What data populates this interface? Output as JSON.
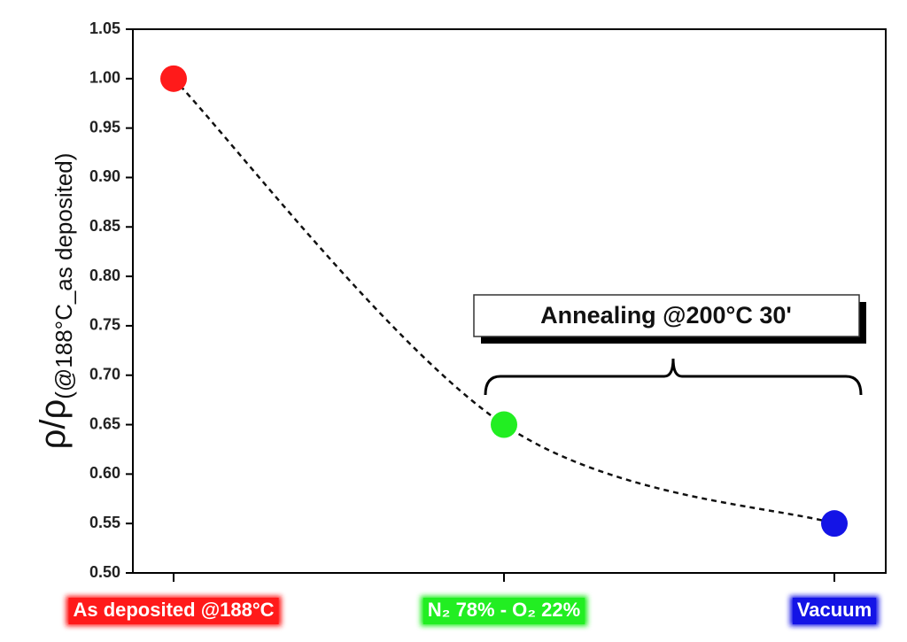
{
  "chart_data": {
    "type": "line",
    "y_label": "ρ/ρ",
    "y_label_subscript": "(@188°C_as deposited)",
    "categories": [
      "As deposited @188°C",
      "N₂ 78% - O₂ 22%",
      "Vacuum"
    ],
    "category_colors": [
      "#ff1a1a",
      "#22ee22",
      "#1414e6"
    ],
    "series": [
      {
        "values": [
          1.0,
          0.65,
          0.55
        ],
        "colors": [
          "#ff1a1a",
          "#22ee22",
          "#1414e6"
        ],
        "line_color": "#111111"
      }
    ],
    "ylim": [
      0.5,
      1.05
    ],
    "yticks": [
      {
        "value": 0.5,
        "label": "0.50"
      },
      0.55,
      {
        "value": 0.6,
        "label": "0.60"
      },
      0.65,
      {
        "value": 0.7,
        "label": "0.70"
      },
      0.75,
      {
        "value": 0.8,
        "label": "0.80"
      },
      0.85,
      {
        "value": 0.9,
        "label": "0.90"
      },
      0.95,
      {
        "value": 1.0,
        "label": "1.00"
      },
      1.05
    ],
    "annotation": "Annealing @200°C 30'"
  }
}
